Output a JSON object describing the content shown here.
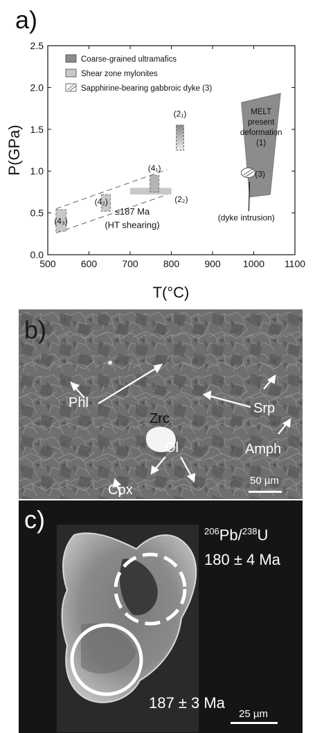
{
  "panel_a": {
    "letter": "a)",
    "chart_data": {
      "type": "scatter",
      "xlabel": "T(°C)",
      "ylabel": "P(GPa)",
      "xlim": [
        500,
        1100
      ],
      "ylim": [
        0.0,
        2.5
      ],
      "xticks": [
        "500",
        "600",
        "700",
        "800",
        "900",
        "1000",
        "1100"
      ],
      "yticks": [
        "0.0",
        "0.5",
        "1.0",
        "1.5",
        "2.0",
        "2.5"
      ],
      "legend": [
        {
          "label": "Coarse-grained ultramafics",
          "color": "#8c8c8c"
        },
        {
          "label": "Shear zone mylonites",
          "color": "#c8c8c8"
        },
        {
          "label": "Sapphirine-bearing gabbroic dyke (3)",
          "color": "#ffffff"
        }
      ],
      "legend_placement": "top-left",
      "fields": [
        {
          "name": "melt",
          "label_lines": [
            "MELT",
            "present",
            "deformation",
            "(1)"
          ],
          "polygon": [
            [
              970,
              1.82
            ],
            [
              1065,
              1.93
            ],
            [
              1040,
              0.72
            ],
            [
              990,
              0.69
            ]
          ],
          "color": "#8c8c8c"
        },
        {
          "name": "2_1",
          "label": "(2₁)",
          "x": [
            812,
            830
          ],
          "y": [
            1.25,
            1.55
          ]
        },
        {
          "name": "2_2",
          "label": "(2₂)",
          "x": [
            700,
            800
          ],
          "y": [
            0.72,
            0.8
          ]
        },
        {
          "name": "4_1",
          "label": "(4₁)",
          "x": [
            748,
            770
          ],
          "y": [
            0.75,
            0.95
          ]
        },
        {
          "name": "4_2",
          "label": "(4₂)",
          "x": [
            630,
            652
          ],
          "y": [
            0.52,
            0.72
          ]
        },
        {
          "name": "4_3",
          "label": "(4₃)",
          "x": [
            520,
            545
          ],
          "y": [
            0.28,
            0.54
          ]
        },
        {
          "name": "3",
          "label": "(3)",
          "x": [
            1000
          ],
          "y": [
            0.98
          ]
        }
      ],
      "annotations": [
        "≤187 Ma",
        "(HT shearing)",
        "(dyke intrusion)"
      ]
    }
  },
  "panel_b": {
    "letter": "b)",
    "minerals": [
      "Phl",
      "Zrc",
      "Srp",
      "Ol",
      "Amph",
      "Cpx"
    ],
    "scale": "50 µm"
  },
  "panel_c": {
    "letter": "c)",
    "ratio_pre": "206",
    "ratio_mid": "Pb/",
    "ratio_sup2": "238",
    "ratio_post": "U",
    "age_dashed": "180 ± 4 Ma",
    "age_solid": "187 ± 3 Ma",
    "scale": "25 µm"
  }
}
